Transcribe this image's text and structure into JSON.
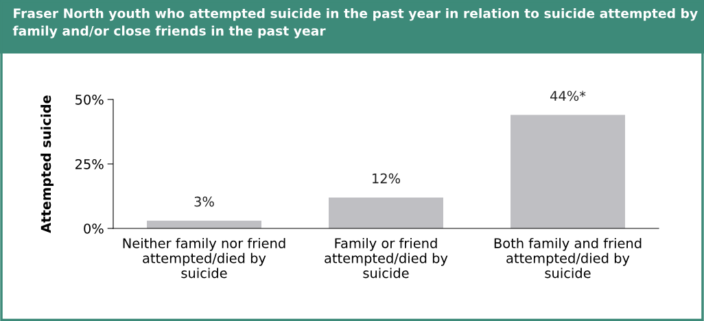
{
  "chart_data": {
    "type": "bar",
    "title": "Fraser North youth who attempted suicide in the past year in relation to suicide attempted by family and/or close friends in the past year",
    "ylabel": "Attempted suicide",
    "categories": [
      "Neither family nor friend\nattempted/died by\nsuicide",
      "Family or friend\nattempted/died by\nsuicide",
      "Both family and friend\nattempted/died by\nsuicide"
    ],
    "values": [
      3,
      12,
      44
    ],
    "color": "#bfbfc3",
    "value_labels": [
      "3%",
      "12%",
      "44%*"
    ],
    "ylim": [
      0,
      50
    ],
    "yticks": [
      {
        "value": 0,
        "label": "0%"
      },
      {
        "value": 25,
        "label": "25%"
      },
      {
        "value": 50,
        "label": "50%"
      }
    ],
    "grid": false,
    "legend": false
  }
}
